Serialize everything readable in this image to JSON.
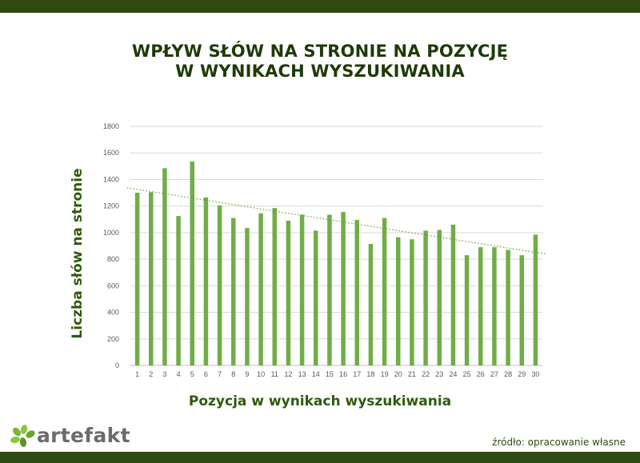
{
  "title_line1": "WPŁYW SŁÓW NA STRONIE NA POZYCJĘ",
  "title_line2": "W WYNIKACH WYSZUKIWANIA",
  "logo_text": "artefakt",
  "source_text": "źródło: opracowanie własne",
  "colors": {
    "band": "#2f4a10",
    "bar": "#70ad47",
    "trend": "#5a9a2a",
    "label": "#2f5a0c"
  },
  "chart_data": {
    "type": "bar",
    "xlabel": "Pozycja w wynikach wyszukiwania",
    "ylabel": "Liczba słów na stronie",
    "ylim": [
      0,
      1800
    ],
    "yticks": [
      "0",
      "200",
      "400",
      "600",
      "800",
      "1000",
      "1200",
      "1400",
      "1600",
      "1800"
    ],
    "categories": [
      "1",
      "2",
      "3",
      "4",
      "5",
      "6",
      "7",
      "8",
      "9",
      "10",
      "11",
      "12",
      "13",
      "14",
      "15",
      "16",
      "17",
      "18",
      "19",
      "20",
      "21",
      "22",
      "23",
      "24",
      "25",
      "26",
      "27",
      "28",
      "29",
      "30"
    ],
    "values": [
      1300,
      1305,
      1485,
      1125,
      1535,
      1265,
      1205,
      1110,
      1035,
      1145,
      1185,
      1090,
      1135,
      1015,
      1135,
      1155,
      1095,
      915,
      1110,
      965,
      950,
      1015,
      1020,
      1060,
      830,
      890,
      890,
      870,
      830,
      985
    ],
    "trendline": {
      "type": "linear",
      "style": "dotted"
    },
    "grid": true
  }
}
